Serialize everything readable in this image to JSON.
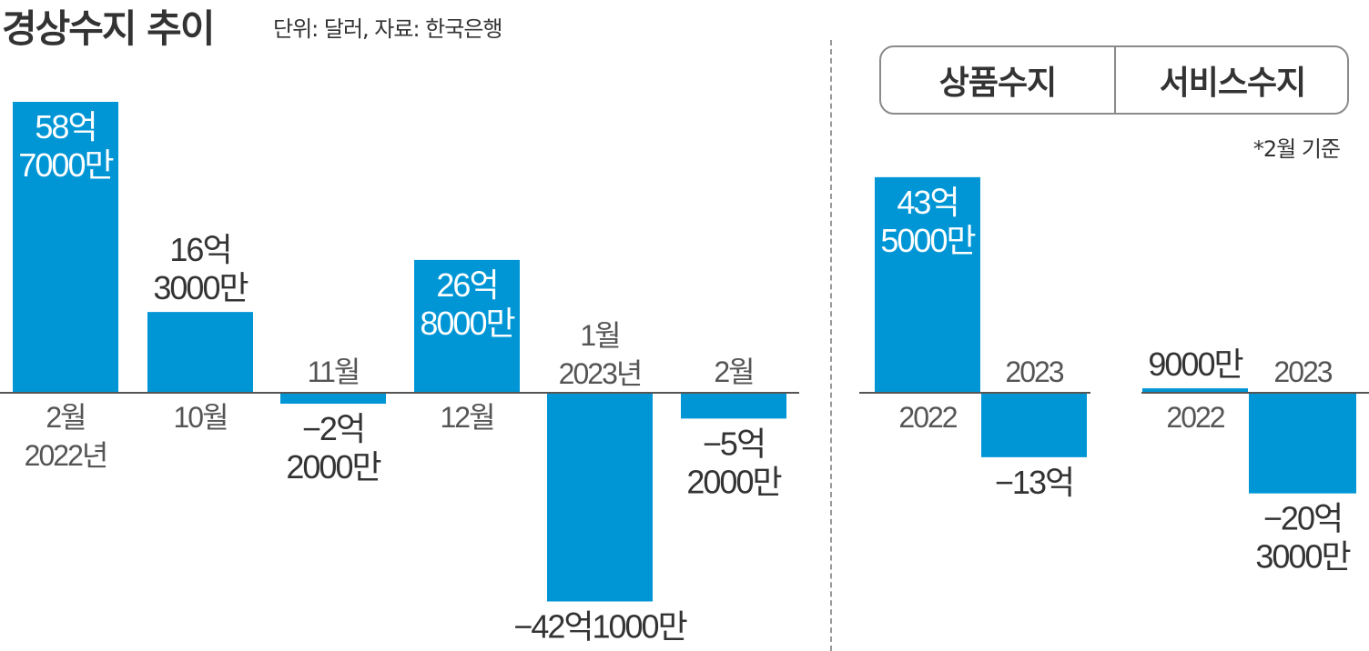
{
  "title": "경상수지 추이",
  "unit_note": "단위: 달러, 자료: 한국은행",
  "tabs": {
    "goods": "상품수지",
    "service": "서비스수지"
  },
  "panel_note": "*2월 기준",
  "colors": {
    "bar": "#0096d6",
    "axis": "#555555",
    "text": "#333333",
    "label_inside": "#ffffff",
    "category": "#555555"
  },
  "chart_data": [
    {
      "type": "bar",
      "title": "경상수지 추이",
      "unit": "달러",
      "categories": [
        "2월 2022년",
        "10월",
        "11월",
        "12월",
        "1월 2023년",
        "2월"
      ],
      "category_lines": [
        [
          "2월",
          "2022년"
        ],
        [
          "10월"
        ],
        [
          "11월"
        ],
        [
          "12월"
        ],
        [
          "1월",
          "2023년"
        ],
        [
          "2월"
        ]
      ],
      "values": [
        5870000000,
        1630000000,
        -220000000,
        2680000000,
        -4210000000,
        -520000000
      ],
      "value_labels": [
        [
          "58억",
          "7000만"
        ],
        [
          "16억",
          "3000만"
        ],
        [
          "−2억",
          "2000만"
        ],
        [
          "26억",
          "8000만"
        ],
        [
          "−42억1000만"
        ],
        [
          "−5억",
          "2000만"
        ]
      ]
    },
    {
      "type": "bar",
      "title": "상품수지",
      "categories": [
        "2022",
        "2023"
      ],
      "values": [
        4350000000,
        -1300000000
      ],
      "value_labels": [
        [
          "43억",
          "5000만"
        ],
        [
          "−13억"
        ]
      ]
    },
    {
      "type": "bar",
      "title": "서비스수지",
      "categories": [
        "2022",
        "2023"
      ],
      "values": [
        90000000,
        -2030000000
      ],
      "value_labels": [
        [
          "9000만"
        ],
        [
          "−20억",
          "3000만"
        ]
      ]
    }
  ]
}
